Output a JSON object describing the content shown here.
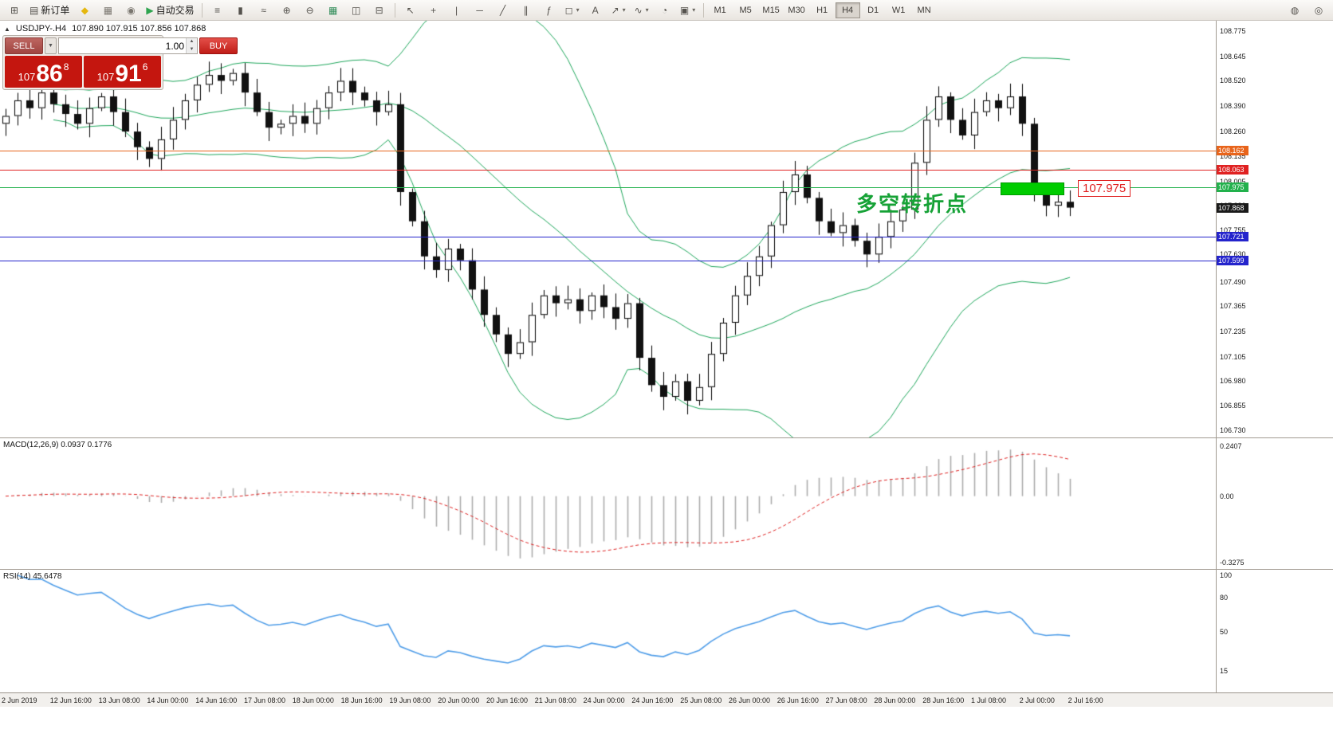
{
  "toolbar": {
    "left_items": [
      {
        "name": "new-chart-icon",
        "glyph": "⊞"
      },
      {
        "name": "new-order-button",
        "glyph": "▤",
        "label": "新订单"
      },
      {
        "name": "mql5-community-icon",
        "glyph": "◆",
        "color": "#e5b70e"
      },
      {
        "name": "profiles-icon",
        "glyph": "▦",
        "color": "#7a766f"
      },
      {
        "name": "data-window-icon",
        "glyph": "◉",
        "color": "#7a766f"
      },
      {
        "name": "auto-trading-button",
        "glyph": "▶",
        "label": "自动交易",
        "color": "#2ea44f"
      }
    ],
    "chart_tools": [
      {
        "name": "bar-chart-icon",
        "glyph": "≡"
      },
      {
        "name": "candlestick-chart-icon",
        "glyph": "▮"
      },
      {
        "name": "line-chart-icon",
        "glyph": "≈"
      },
      {
        "name": "zoom-in-icon",
        "glyph": "⊕"
      },
      {
        "name": "zoom-out-icon",
        "glyph": "⊖"
      },
      {
        "name": "chart-grid-icon",
        "glyph": "▦",
        "color": "#2e8b57"
      },
      {
        "name": "tile-windows-icon",
        "glyph": "◫"
      },
      {
        "name": "cascade-windows-icon",
        "glyph": "⊟"
      }
    ],
    "draw_tools": [
      {
        "name": "cursor-icon",
        "glyph": "↖"
      },
      {
        "name": "crosshair-icon",
        "glyph": "+"
      },
      {
        "name": "vertical-line-icon",
        "glyph": "|"
      },
      {
        "name": "horizontal-line-icon",
        "glyph": "─"
      },
      {
        "name": "trendline-icon",
        "glyph": "╱"
      },
      {
        "name": "channel-icon",
        "glyph": "∥"
      },
      {
        "name": "fibonacci-icon",
        "glyph": "ƒ"
      },
      {
        "name": "shapes-icon",
        "glyph": "◻",
        "dd": true
      },
      {
        "name": "text-icon",
        "glyph": "A"
      },
      {
        "name": "arrows-icon",
        "glyph": "↗",
        "dd": true
      },
      {
        "name": "indicators-icon",
        "glyph": "∿",
        "dd": true
      },
      {
        "name": "clock-icon",
        "glyph": "◔"
      },
      {
        "name": "templates-icon",
        "glyph": "▣",
        "dd": true
      }
    ],
    "timeframes": [
      "M1",
      "M5",
      "M15",
      "M30",
      "H1",
      "H4",
      "D1",
      "W1",
      "MN"
    ],
    "active_timeframe": "H4",
    "right_items": [
      {
        "name": "alerts-icon",
        "glyph": "◍"
      },
      {
        "name": "search-icon",
        "glyph": "◎"
      }
    ]
  },
  "chart": {
    "symbol": "USDJPY-.H4",
    "ohlc_text": "107.890 107.915 107.856 107.868",
    "annotation": "多空转折点",
    "callout": "107.975"
  },
  "trade_panel": {
    "sell_label": "SELL",
    "buy_label": "BUY",
    "volume": "1.00",
    "sell_price": {
      "prefix": "107",
      "big": "86",
      "sup": "8"
    },
    "buy_price": {
      "prefix": "107",
      "big": "91",
      "sup": "6"
    }
  },
  "macd": {
    "label": "MACD(12,26,9) 0.0937 0.1776",
    "axis": [
      "0.2407",
      "0.00",
      "-0.3275"
    ]
  },
  "rsi": {
    "label": "RSI(14) 45.6478",
    "axis": [
      "100",
      "80",
      "50",
      "15"
    ],
    "axis_values": [
      100,
      80,
      50,
      15
    ]
  },
  "chart_data": {
    "type": "candlestick",
    "symbol": "USDJPY",
    "timeframe": "H4",
    "ylim": [
      106.7,
      108.82
    ],
    "ohlc_display": {
      "open": "107.890",
      "high": "107.915",
      "low": "107.856",
      "close": "107.868"
    },
    "closes": [
      108.34,
      108.42,
      108.38,
      108.46,
      108.4,
      108.35,
      108.3,
      108.38,
      108.44,
      108.36,
      108.26,
      108.18,
      108.12,
      108.22,
      108.32,
      108.42,
      108.5,
      108.55,
      108.52,
      108.56,
      108.46,
      108.36,
      108.28,
      108.3,
      108.34,
      108.3,
      108.38,
      108.46,
      108.52,
      108.46,
      108.42,
      108.36,
      108.4,
      107.95,
      107.8,
      107.62,
      107.55,
      107.66,
      107.6,
      107.45,
      107.32,
      107.22,
      107.12,
      107.18,
      107.32,
      107.42,
      107.38,
      107.4,
      107.34,
      107.42,
      107.36,
      107.3,
      107.38,
      107.1,
      106.96,
      106.9,
      106.98,
      106.88,
      106.95,
      107.12,
      107.28,
      107.42,
      107.52,
      107.62,
      107.78,
      107.95,
      108.04,
      107.92,
      107.8,
      107.74,
      107.78,
      107.7,
      107.63,
      107.72,
      107.8,
      107.86,
      108.1,
      108.32,
      108.44,
      108.32,
      108.24,
      108.36,
      108.42,
      108.38,
      108.44,
      108.3,
      107.95,
      107.88,
      107.9,
      107.87
    ],
    "indicators": {
      "bollinger": {
        "period": 20,
        "deviation": 2,
        "color": "#1ea65b"
      },
      "macd": {
        "fast": 12,
        "slow": 26,
        "signal": 9,
        "main_value": 0.0937,
        "signal_value": 0.1776,
        "bar_color": "#ababab",
        "signal_color": "#dd2222"
      },
      "rsi": {
        "period": 14,
        "value": 45.6478,
        "color": "#4f9de8"
      }
    },
    "price_axis": [
      "108.775",
      "108.645",
      "108.520",
      "108.390",
      "108.260",
      "108.135",
      "108.005",
      "107.880",
      "107.755",
      "107.630",
      "107.490",
      "107.365",
      "107.235",
      "107.105",
      "106.980",
      "106.855",
      "106.730"
    ],
    "time_axis": [
      "2 Jun 2019",
      "12 Jun 16:00",
      "13 Jun 08:00",
      "14 Jun 00:00",
      "14 Jun 16:00",
      "17 Jun 08:00",
      "18 Jun 00:00",
      "18 Jun 16:00",
      "19 Jun 08:00",
      "20 Jun 00:00",
      "20 Jun 16:00",
      "21 Jun 08:00",
      "24 Jun 00:00",
      "24 Jun 16:00",
      "25 Jun 08:00",
      "26 Jun 00:00",
      "26 Jun 16:00",
      "27 Jun 08:00",
      "28 Jun 00:00",
      "28 Jun 16:00",
      "1 Jul 08:00",
      "2 Jul 00:00",
      "2 Jul 16:00"
    ],
    "lines": [
      {
        "price": 108.162,
        "label": "108.162",
        "color": "#e8641b"
      },
      {
        "price": 108.063,
        "label": "108.063",
        "color": "#e02222"
      },
      {
        "price": 107.975,
        "label": "107.975",
        "color": "#22b14c"
      },
      {
        "price": 107.721,
        "label": "107.721",
        "color": "#2424cc"
      },
      {
        "price": 107.599,
        "label": "107.599",
        "color": "#2424cc"
      }
    ],
    "current_price": {
      "price": 107.868,
      "label": "107.868",
      "color": "#1a1a1a"
    }
  }
}
